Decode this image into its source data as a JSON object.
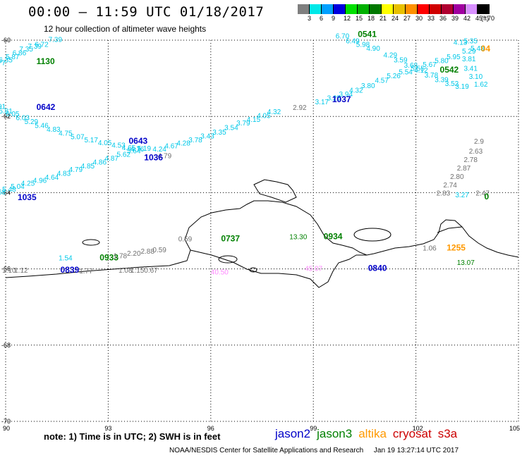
{
  "header": {
    "title": "00:00 – 11:59 UTC 01/18/2017",
    "subtitle": "12 hour collection of altimeter wave heights"
  },
  "color_scale": {
    "unit_label": "(ft)",
    "bins": [
      {
        "label": "3",
        "color": "#7f7f7f"
      },
      {
        "label": "6",
        "color": "#00e8e8"
      },
      {
        "label": "9",
        "color": "#00a0ff"
      },
      {
        "label": "12",
        "color": "#0000e0"
      },
      {
        "label": "15",
        "color": "#00e000"
      },
      {
        "label": "18",
        "color": "#00b000"
      },
      {
        "label": "21",
        "color": "#007800"
      },
      {
        "label": "24",
        "color": "#ffff00"
      },
      {
        "label": "27",
        "color": "#e8c000"
      },
      {
        "label": "30",
        "color": "#ff9000"
      },
      {
        "label": "33",
        "color": "#ff0000"
      },
      {
        "label": "36",
        "color": "#d00000"
      },
      {
        "label": "39",
        "color": "#b00030"
      },
      {
        "label": "42",
        "color": "#a000a0"
      },
      {
        "label": "45",
        "color": "#d890ff"
      },
      {
        "label": "70",
        "color": "#000000"
      }
    ]
  },
  "axes": {
    "lat_labels": [
      "-60",
      "-62",
      "-64",
      "-66",
      "-68",
      "-70"
    ],
    "lon_labels": [
      "90",
      "93",
      "96",
      "99",
      "102",
      "105"
    ]
  },
  "colors": {
    "cyan": "#00c8e8",
    "gray": "#707070",
    "jason2": "#0000c8",
    "jason3": "#008000",
    "altika": "#ff9900",
    "cryosat": "#cc0000",
    "s3a": "#cc0000",
    "pink": "#ff88ff"
  },
  "observations": [
    {
      "lon": 90.85,
      "lat": -60.18,
      "text": "6.72",
      "c": "cyan"
    },
    {
      "lon": 90.65,
      "lat": -60.22,
      "text": "7.39",
      "c": "cyan"
    },
    {
      "lon": 90.4,
      "lat": -60.3,
      "text": "7.35",
      "c": "cyan"
    },
    {
      "lon": 90.2,
      "lat": -60.4,
      "text": "6.86",
      "c": "cyan"
    },
    {
      "lon": 90.0,
      "lat": -60.5,
      "text": "5.87",
      "c": "cyan"
    },
    {
      "lon": 89.8,
      "lat": -60.58,
      "text": "6.35",
      "c": "cyan"
    },
    {
      "lon": 89.6,
      "lat": -60.66,
      "text": "6.77",
      "c": "cyan"
    },
    {
      "lon": 91.25,
      "lat": -60.05,
      "text": "7.39",
      "c": "cyan"
    },
    {
      "lon": 90.9,
      "lat": -60.63,
      "text": "1130",
      "c": "jason3",
      "time": true
    },
    {
      "lon": 89.6,
      "lat": -61.8,
      "text": "5.91",
      "c": "cyan"
    },
    {
      "lon": 89.8,
      "lat": -61.92,
      "text": "5.81",
      "c": "cyan"
    },
    {
      "lon": 90.0,
      "lat": -62.0,
      "text": "6.05",
      "c": "cyan"
    },
    {
      "lon": 90.3,
      "lat": -62.1,
      "text": "6.03",
      "c": "cyan"
    },
    {
      "lon": 90.55,
      "lat": -62.2,
      "text": "5.29",
      "c": "cyan"
    },
    {
      "lon": 90.85,
      "lat": -62.3,
      "text": "5.46",
      "c": "cyan"
    },
    {
      "lon": 91.2,
      "lat": -62.4,
      "text": "4.83",
      "c": "cyan"
    },
    {
      "lon": 91.55,
      "lat": -62.5,
      "text": "4.75",
      "c": "cyan"
    },
    {
      "lon": 91.9,
      "lat": -62.6,
      "text": "5.07",
      "c": "cyan"
    },
    {
      "lon": 92.3,
      "lat": -62.68,
      "text": "5.17",
      "c": "cyan"
    },
    {
      "lon": 92.7,
      "lat": -62.75,
      "text": "4.05",
      "c": "cyan"
    },
    {
      "lon": 93.1,
      "lat": -62.82,
      "text": "4.53",
      "c": "cyan"
    },
    {
      "lon": 93.4,
      "lat": -62.88,
      "text": "4.65",
      "c": "cyan"
    },
    {
      "lon": 93.65,
      "lat": -62.92,
      "text": "4.76",
      "c": "cyan"
    },
    {
      "lon": 90.9,
      "lat": -61.83,
      "text": "0642",
      "c": "jason2",
      "time": true
    },
    {
      "lon": 93.6,
      "lat": -62.72,
      "text": "0643",
      "c": "jason2",
      "time": true
    },
    {
      "lon": 89.6,
      "lat": -64.05,
      "text": "4.68",
      "c": "cyan"
    },
    {
      "lon": 89.9,
      "lat": -63.97,
      "text": "5.48",
      "c": "cyan"
    },
    {
      "lon": 90.15,
      "lat": -63.9,
      "text": "5.04",
      "c": "cyan"
    },
    {
      "lon": 90.45,
      "lat": -63.82,
      "text": "4.25",
      "c": "cyan"
    },
    {
      "lon": 90.8,
      "lat": -63.74,
      "text": "4.96",
      "c": "cyan"
    },
    {
      "lon": 91.15,
      "lat": -63.66,
      "text": "4.64",
      "c": "cyan"
    },
    {
      "lon": 91.5,
      "lat": -63.56,
      "text": "4.83",
      "c": "cyan"
    },
    {
      "lon": 91.85,
      "lat": -63.46,
      "text": "4.79",
      "c": "cyan"
    },
    {
      "lon": 92.2,
      "lat": -63.36,
      "text": "4.85",
      "c": "cyan"
    },
    {
      "lon": 92.55,
      "lat": -63.26,
      "text": "4.86",
      "c": "cyan"
    },
    {
      "lon": 92.9,
      "lat": -63.16,
      "text": "4.87",
      "c": "cyan"
    },
    {
      "lon": 93.25,
      "lat": -63.06,
      "text": "5.62",
      "c": "cyan"
    },
    {
      "lon": 93.55,
      "lat": -62.97,
      "text": "5.64",
      "c": "cyan"
    },
    {
      "lon": 93.85,
      "lat": -62.9,
      "text": "5.19",
      "c": "cyan"
    },
    {
      "lon": 94.45,
      "lat": -63.1,
      "text": "4.79",
      "c": "gray"
    },
    {
      "lon": 90.35,
      "lat": -64.2,
      "text": "1035",
      "c": "jason2",
      "time": true
    },
    {
      "lon": 94.05,
      "lat": -63.15,
      "text": "1036",
      "c": "jason2",
      "time": true
    },
    {
      "lon": 94.3,
      "lat": -62.92,
      "text": "4.24",
      "c": "cyan"
    },
    {
      "lon": 94.65,
      "lat": -62.84,
      "text": "4.67",
      "c": "cyan"
    },
    {
      "lon": 95.0,
      "lat": -62.76,
      "text": "4.28",
      "c": "cyan"
    },
    {
      "lon": 95.35,
      "lat": -62.68,
      "text": "3.78",
      "c": "cyan"
    },
    {
      "lon": 95.7,
      "lat": -62.58,
      "text": "3.43",
      "c": "cyan"
    },
    {
      "lon": 96.05,
      "lat": -62.48,
      "text": "3.35",
      "c": "cyan"
    },
    {
      "lon": 96.4,
      "lat": -62.36,
      "text": "3.54",
      "c": "cyan"
    },
    {
      "lon": 96.75,
      "lat": -62.24,
      "text": "3.79",
      "c": "cyan"
    },
    {
      "lon": 97.05,
      "lat": -62.14,
      "text": "4.15",
      "c": "cyan"
    },
    {
      "lon": 97.35,
      "lat": -62.04,
      "text": "4.05",
      "c": "cyan"
    },
    {
      "lon": 97.65,
      "lat": -61.94,
      "text": "4.32",
      "c": "cyan"
    },
    {
      "lon": 98.4,
      "lat": -61.83,
      "text": "2.92",
      "c": "gray"
    },
    {
      "lon": 99.05,
      "lat": -61.68,
      "text": "3.17",
      "c": "cyan"
    },
    {
      "lon": 99.4,
      "lat": -61.58,
      "text": "3.25",
      "c": "cyan"
    },
    {
      "lon": 99.75,
      "lat": -61.48,
      "text": "3.94",
      "c": "cyan"
    },
    {
      "lon": 100.05,
      "lat": -61.38,
      "text": "4.32",
      "c": "cyan"
    },
    {
      "lon": 100.4,
      "lat": -61.26,
      "text": "3.80",
      "c": "cyan"
    },
    {
      "lon": 100.8,
      "lat": -61.12,
      "text": "4.57",
      "c": "cyan"
    },
    {
      "lon": 101.15,
      "lat": -61.0,
      "text": "5.26",
      "c": "cyan"
    },
    {
      "lon": 101.5,
      "lat": -60.9,
      "text": "5.54",
      "c": "cyan"
    },
    {
      "lon": 101.85,
      "lat": -60.8,
      "text": "5.55",
      "c": "cyan"
    },
    {
      "lon": 102.2,
      "lat": -60.7,
      "text": "5.67",
      "c": "cyan"
    },
    {
      "lon": 102.55,
      "lat": -60.6,
      "text": "5.80",
      "c": "cyan"
    },
    {
      "lon": 102.9,
      "lat": -60.5,
      "text": "5.95",
      "c": "cyan"
    },
    {
      "lon": 99.55,
      "lat": -61.63,
      "text": "1037",
      "c": "jason2",
      "time": true
    },
    {
      "lon": 99.65,
      "lat": -59.95,
      "text": "6.70",
      "c": "cyan"
    },
    {
      "lon": 99.95,
      "lat": -60.08,
      "text": "6.49",
      "c": "cyan"
    },
    {
      "lon": 100.25,
      "lat": -60.18,
      "text": "5.98",
      "c": "cyan"
    },
    {
      "lon": 100.55,
      "lat": -60.28,
      "text": "4.90",
      "c": "cyan"
    },
    {
      "lon": 101.05,
      "lat": -60.45,
      "text": "4.29",
      "c": "cyan"
    },
    {
      "lon": 101.35,
      "lat": -60.58,
      "text": "3.59",
      "c": "cyan"
    },
    {
      "lon": 101.65,
      "lat": -60.72,
      "text": "3.68",
      "c": "cyan"
    },
    {
      "lon": 101.95,
      "lat": -60.85,
      "text": "4.12",
      "c": "cyan"
    },
    {
      "lon": 102.25,
      "lat": -60.98,
      "text": "3.78",
      "c": "cyan"
    },
    {
      "lon": 102.55,
      "lat": -61.1,
      "text": "3.39",
      "c": "cyan"
    },
    {
      "lon": 102.85,
      "lat": -61.2,
      "text": "3.52",
      "c": "cyan"
    },
    {
      "lon": 103.15,
      "lat": -61.28,
      "text": "3.19",
      "c": "cyan"
    },
    {
      "lon": 100.3,
      "lat": -59.92,
      "text": "0541",
      "c": "jason3",
      "time": true
    },
    {
      "lon": 102.7,
      "lat": -60.85,
      "text": "0542",
      "c": "jason3",
      "time": true
    },
    {
      "lon": 103.1,
      "lat": -60.12,
      "text": "4.13",
      "c": "cyan"
    },
    {
      "lon": 103.4,
      "lat": -60.08,
      "text": "5.35",
      "c": "cyan"
    },
    {
      "lon": 103.35,
      "lat": -60.35,
      "text": "5.29",
      "c": "cyan"
    },
    {
      "lon": 103.6,
      "lat": -60.28,
      "text": "5.48",
      "c": "cyan"
    },
    {
      "lon": 103.35,
      "lat": -60.55,
      "text": "3.81",
      "c": "cyan"
    },
    {
      "lon": 103.4,
      "lat": -60.8,
      "text": "3.41",
      "c": "cyan"
    },
    {
      "lon": 103.55,
      "lat": -61.02,
      "text": "3.10",
      "c": "cyan"
    },
    {
      "lon": 103.7,
      "lat": -61.22,
      "text": "1.62",
      "c": "cyan"
    },
    {
      "lon": 103.9,
      "lat": -60.3,
      "text": "04",
      "c": "altika",
      "time": true
    },
    {
      "lon": 103.7,
      "lat": -62.72,
      "text": "2.9",
      "c": "gray"
    },
    {
      "lon": 103.55,
      "lat": -62.98,
      "text": "2.63",
      "c": "gray"
    },
    {
      "lon": 103.4,
      "lat": -63.2,
      "text": "2.78",
      "c": "gray"
    },
    {
      "lon": 103.2,
      "lat": -63.42,
      "text": "2.87",
      "c": "gray"
    },
    {
      "lon": 103.0,
      "lat": -63.64,
      "text": "2.80",
      "c": "gray"
    },
    {
      "lon": 102.8,
      "lat": -63.86,
      "text": "2.74",
      "c": "gray"
    },
    {
      "lon": 102.6,
      "lat": -64.08,
      "text": "2.83",
      "c": "gray"
    },
    {
      "lon": 103.15,
      "lat": -64.12,
      "text": "3.27",
      "c": "cyan"
    },
    {
      "lon": 103.75,
      "lat": -64.08,
      "text": "2.47",
      "c": "gray"
    },
    {
      "lon": 104.0,
      "lat": -64.18,
      "text": "0",
      "c": "jason3",
      "time": true
    },
    {
      "lon": 91.55,
      "lat": -65.78,
      "text": "1.54",
      "c": "cyan"
    },
    {
      "lon": 92.75,
      "lat": -65.78,
      "text": "0933",
      "c": "jason3",
      "time": true
    },
    {
      "lon": 93.15,
      "lat": -65.72,
      "text": "1.78",
      "c": "gray"
    },
    {
      "lon": 93.55,
      "lat": -65.66,
      "text": "2.20",
      "c": "gray"
    },
    {
      "lon": 93.95,
      "lat": -65.6,
      "text": "2.88",
      "c": "gray"
    },
    {
      "lon": 94.3,
      "lat": -65.56,
      "text": "0.59",
      "c": "gray"
    },
    {
      "lon": 95.05,
      "lat": -65.28,
      "text": "0.59",
      "c": "gray"
    },
    {
      "lon": 96.3,
      "lat": -65.28,
      "text": "0737",
      "c": "jason3",
      "time": true
    },
    {
      "lon": 89.9,
      "lat": -66.1,
      "text": "1.10",
      "c": "gray"
    },
    {
      "lon": 90.25,
      "lat": -66.1,
      "text": "1.12",
      "c": "gray"
    },
    {
      "lon": 91.6,
      "lat": -66.1,
      "text": "0839",
      "c": "jason2",
      "time": true
    },
    {
      "lon": 92.15,
      "lat": -66.12,
      "text": "1.77",
      "c": "gray"
    },
    {
      "lon": 93.3,
      "lat": -66.1,
      "text": "1.08",
      "c": "gray"
    },
    {
      "lon": 93.65,
      "lat": -66.1,
      "text": "1.15",
      "c": "gray"
    },
    {
      "lon": 94.05,
      "lat": -66.1,
      "text": "0.67",
      "c": "gray"
    },
    {
      "lon": 96.0,
      "lat": -66.15,
      "text": "40.50",
      "c": "pink"
    },
    {
      "lon": 98.3,
      "lat": -65.22,
      "text": "13.30",
      "c": "jason3"
    },
    {
      "lon": 99.3,
      "lat": -65.22,
      "text": "0934",
      "c": "jason3",
      "time": true
    },
    {
      "lon": 98.75,
      "lat": -66.05,
      "text": "45.07",
      "c": "pink"
    },
    {
      "lon": 100.6,
      "lat": -66.05,
      "text": "0840",
      "c": "jason2",
      "time": true
    },
    {
      "lon": 102.2,
      "lat": -65.52,
      "text": "1.06",
      "c": "gray"
    },
    {
      "lon": 102.9,
      "lat": -65.52,
      "text": "1255",
      "c": "altika",
      "time": true
    },
    {
      "lon": 103.2,
      "lat": -65.9,
      "text": "13.07",
      "c": "jason3"
    }
  ],
  "legend_satellites": [
    {
      "label": "jason2",
      "c": "jason2"
    },
    {
      "label": "jason3",
      "c": "jason3"
    },
    {
      "label": "altika",
      "c": "altika"
    },
    {
      "label": "cryosat",
      "c": "cryosat"
    },
    {
      "label": "s3a",
      "c": "s3a"
    }
  ],
  "footer": {
    "note": "note: 1) Time is in UTC; 2) SWH is in feet",
    "credit": "NOAA/NESDIS Center for Satellite Applications and Research",
    "generated": "Jan 19 13:27:14 UTC 2017"
  }
}
